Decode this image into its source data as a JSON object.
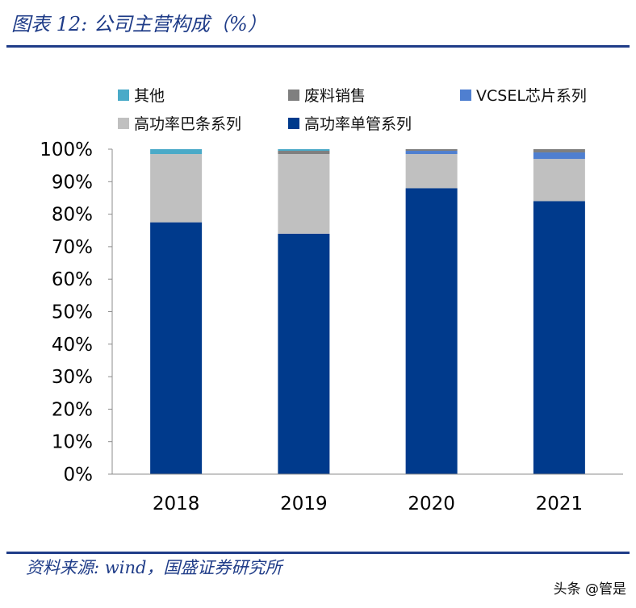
{
  "header": {
    "title": "图表 12:  公司主营构成（%）"
  },
  "footer": {
    "source": "资料来源:  wind，国盛证券研究所",
    "watermark": "头条 @管是"
  },
  "chart_data": {
    "type": "bar",
    "stacked": true,
    "title": "公司主营构成（%）",
    "xlabel": "",
    "ylabel": "",
    "ylim": [
      0,
      100
    ],
    "yticks": [
      "0%",
      "10%",
      "20%",
      "30%",
      "40%",
      "50%",
      "60%",
      "70%",
      "80%",
      "90%",
      "100%"
    ],
    "categories": [
      "2018",
      "2019",
      "2020",
      "2021"
    ],
    "series": [
      {
        "name": "高功率单管系列",
        "color": "#003a8c",
        "values": [
          77.5,
          74,
          88,
          84
        ]
      },
      {
        "name": "高功率巴条系列",
        "color": "#c0c0c0",
        "values": [
          21,
          24.5,
          10.5,
          13
        ]
      },
      {
        "name": "VCSEL芯片系列",
        "color": "#4f7fd0",
        "values": [
          0,
          0,
          1,
          2
        ]
      },
      {
        "name": "废料销售",
        "color": "#7f7f7f",
        "values": [
          0,
          1,
          0.5,
          1
        ]
      },
      {
        "name": "其他",
        "color": "#4aaac8",
        "values": [
          1.5,
          0.5,
          0,
          0
        ]
      }
    ],
    "legend": {
      "placement": "top",
      "order": [
        "其他",
        "废料销售",
        "VCSEL芯片系列",
        "高功率巴条系列",
        "高功率单管系列"
      ]
    }
  }
}
